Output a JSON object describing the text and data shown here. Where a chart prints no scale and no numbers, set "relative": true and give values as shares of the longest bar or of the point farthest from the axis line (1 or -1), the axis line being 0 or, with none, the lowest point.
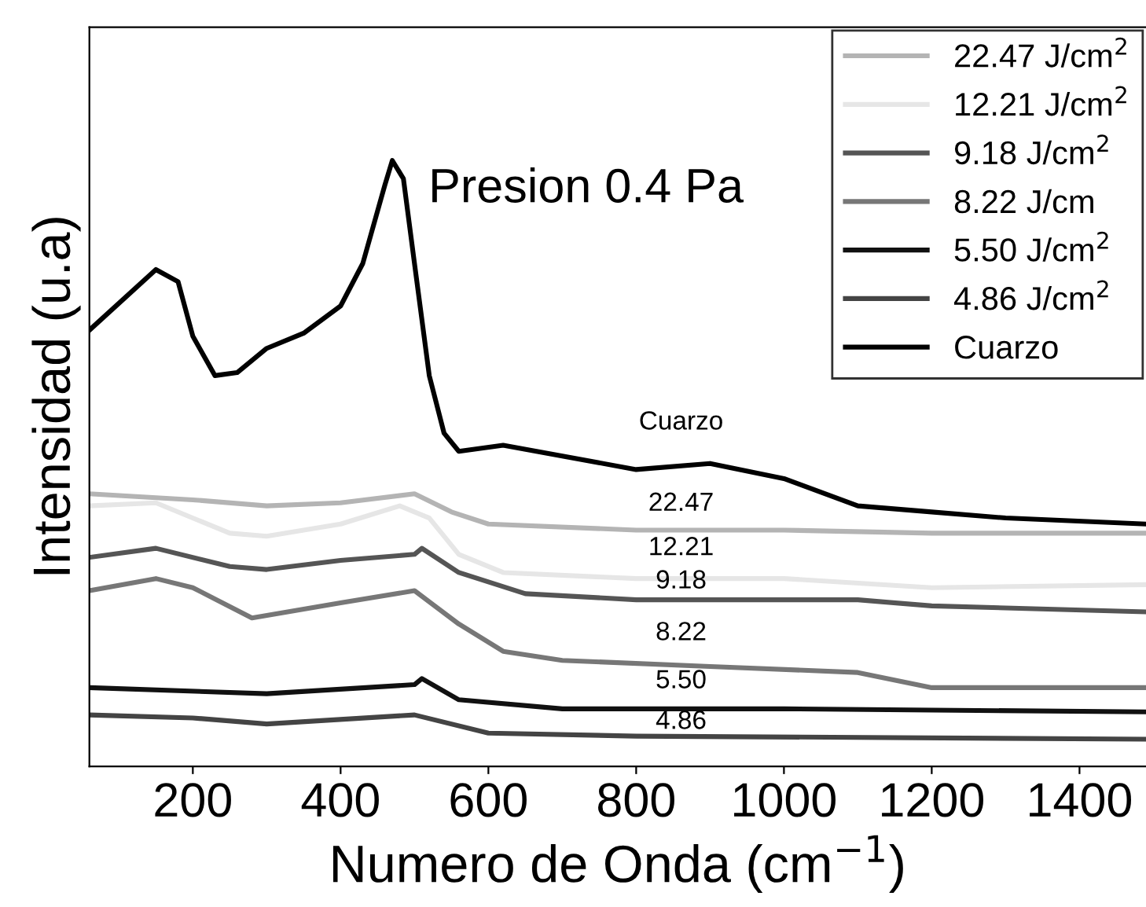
{
  "chart_data": {
    "type": "line",
    "relative": true,
    "xlabel": "Numero de Onda (cm$^{−1}$)",
    "ylabel": "Intensidad (u.a)",
    "xlim": [
      60,
      1490
    ],
    "xticks": [
      200,
      400,
      600,
      800,
      1000,
      1200,
      1400
    ],
    "legend": "top right",
    "line_style": "solid",
    "marker": "none",
    "grid": false,
    "tick_labels": "x",
    "annotations": [
      "Presion 0.4 Pa",
      "Cuarzo",
      "22.47",
      "12.21",
      "9.18",
      "8.22",
      "5.50",
      "4.86"
    ],
    "series": [
      {
        "name": "22.47 J/cm$^{2}$",
        "color": "#b4b4b4",
        "x": [
          60,
          200,
          300,
          400,
          500,
          550,
          600,
          800,
          1000,
          1200,
          1490
        ],
        "values": [
          0.45,
          0.44,
          0.43,
          0.435,
          0.45,
          0.42,
          0.4,
          0.39,
          0.39,
          0.385,
          0.385
        ]
      },
      {
        "name": "12.21 J/cm$^{2}$",
        "color": "#e6e6e6",
        "x": [
          60,
          150,
          250,
          300,
          400,
          480,
          520,
          560,
          620,
          800,
          1000,
          1200,
          1490
        ],
        "values": [
          0.43,
          0.435,
          0.385,
          0.38,
          0.4,
          0.43,
          0.41,
          0.35,
          0.32,
          0.31,
          0.31,
          0.295,
          0.3
        ]
      },
      {
        "name": "9.18 J/cm$^{2}$",
        "color": "#555555",
        "x": [
          60,
          150,
          250,
          300,
          400,
          500,
          510,
          560,
          650,
          800,
          1100,
          1200,
          1490
        ],
        "values": [
          0.345,
          0.36,
          0.33,
          0.325,
          0.34,
          0.35,
          0.36,
          0.32,
          0.285,
          0.275,
          0.275,
          0.265,
          0.255
        ]
      },
      {
        "name": "8.22 J/cm",
        "color": "#777777",
        "x": [
          60,
          150,
          200,
          280,
          400,
          500,
          560,
          620,
          700,
          900,
          1100,
          1200,
          1490
        ],
        "values": [
          0.29,
          0.31,
          0.295,
          0.245,
          0.27,
          0.29,
          0.235,
          0.19,
          0.175,
          0.165,
          0.155,
          0.13,
          0.13
        ]
      },
      {
        "name": "5.50 J/cm$^{2}$",
        "color": "#111111",
        "x": [
          60,
          300,
          500,
          510,
          560,
          700,
          1000,
          1490
        ],
        "values": [
          0.13,
          0.12,
          0.135,
          0.145,
          0.11,
          0.095,
          0.095,
          0.09
        ]
      },
      {
        "name": "4.86 J/cm$^{2}$",
        "color": "#444444",
        "x": [
          60,
          200,
          300,
          500,
          600,
          800,
          1490
        ],
        "values": [
          0.085,
          0.08,
          0.07,
          0.085,
          0.055,
          0.05,
          0.045
        ]
      },
      {
        "name": "Cuarzo",
        "color": "#000000",
        "x": [
          60,
          150,
          180,
          200,
          230,
          260,
          300,
          350,
          400,
          430,
          460,
          470,
          485,
          500,
          520,
          540,
          560,
          620,
          800,
          900,
          1000,
          1100,
          1200,
          1300,
          1490
        ],
        "values": [
          0.72,
          0.82,
          0.8,
          0.71,
          0.645,
          0.65,
          0.69,
          0.715,
          0.76,
          0.83,
          0.96,
          1.0,
          0.97,
          0.83,
          0.645,
          0.55,
          0.52,
          0.53,
          0.49,
          0.5,
          0.475,
          0.43,
          0.42,
          0.41,
          0.4
        ]
      }
    ]
  }
}
